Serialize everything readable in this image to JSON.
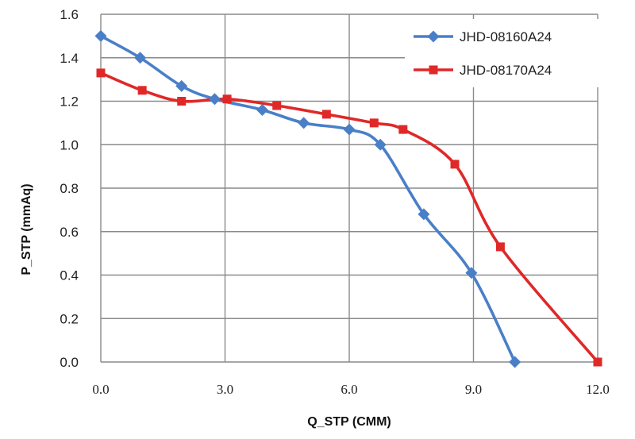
{
  "chart_data": {
    "type": "line",
    "title": "",
    "xlabel": "Q_STP (CMM)",
    "ylabel": "P_STP (mmAq)",
    "xlim": [
      0,
      12
    ],
    "ylim": [
      0,
      1.6
    ],
    "x_ticks": [
      0,
      3,
      6,
      9,
      12
    ],
    "x_tick_labels": [
      "0.0",
      "3.0",
      "6.0",
      "9.0",
      "12.0"
    ],
    "y_ticks": [
      0,
      0.2,
      0.4,
      0.6,
      0.8,
      1.0,
      1.2,
      1.4,
      1.6
    ],
    "y_tick_labels": [
      "0.0",
      "0.2",
      "0.4",
      "0.6",
      "0.8",
      "1.0",
      "1.2",
      "1.4",
      "1.6"
    ],
    "grid": true,
    "legend_position": "top-right",
    "series": [
      {
        "name": "JHD-08160A24",
        "color": "#4a7fc8",
        "marker": "diamond",
        "points": [
          [
            0.0,
            1.5
          ],
          [
            0.95,
            1.4
          ],
          [
            1.95,
            1.27
          ],
          [
            2.75,
            1.21
          ],
          [
            3.9,
            1.16
          ],
          [
            4.9,
            1.1
          ],
          [
            6.0,
            1.07
          ],
          [
            6.75,
            1.0
          ],
          [
            7.8,
            0.68
          ],
          [
            8.95,
            0.41
          ],
          [
            10.0,
            0.0
          ]
        ]
      },
      {
        "name": "JHD-08170A24",
        "color": "#e02828",
        "marker": "square",
        "points": [
          [
            0.0,
            1.33
          ],
          [
            1.0,
            1.25
          ],
          [
            1.95,
            1.2
          ],
          [
            3.05,
            1.21
          ],
          [
            4.25,
            1.18
          ],
          [
            5.45,
            1.14
          ],
          [
            6.6,
            1.1
          ],
          [
            7.3,
            1.07
          ],
          [
            8.55,
            0.91
          ],
          [
            9.65,
            0.53
          ],
          [
            12.0,
            0.0
          ]
        ]
      }
    ]
  }
}
